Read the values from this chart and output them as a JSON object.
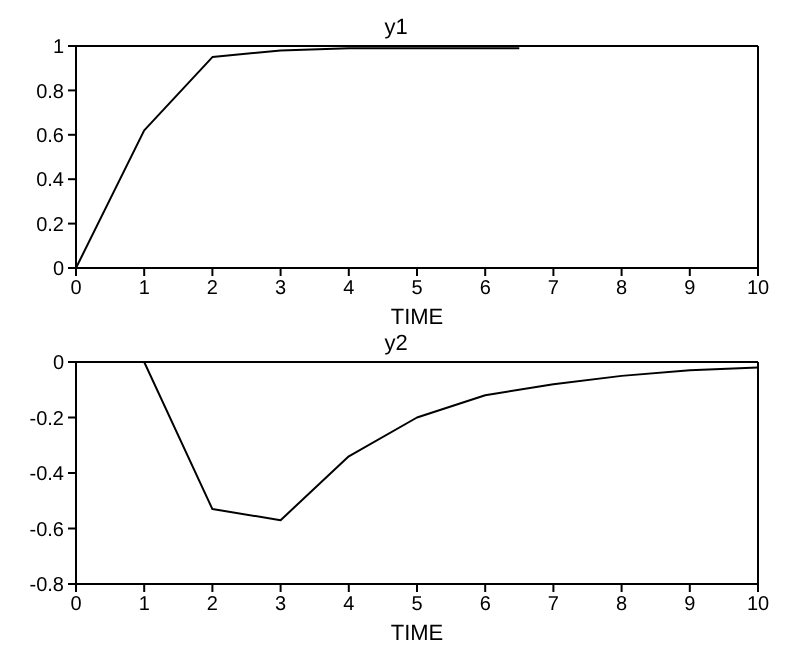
{
  "chart_data": [
    {
      "type": "line",
      "title": "y1",
      "xlabel": "TIME",
      "x": [
        0,
        1,
        2,
        3,
        4,
        5,
        6,
        6.5
      ],
      "values": [
        0,
        0.62,
        0.95,
        0.98,
        0.99,
        0.99,
        0.99,
        0.99
      ],
      "color": "#000000",
      "xlim": [
        0,
        10
      ],
      "xticks": [
        0,
        1,
        2,
        3,
        4,
        5,
        6,
        7,
        8,
        9,
        10
      ],
      "ylim": [
        0,
        1
      ],
      "yticks": [
        0,
        0.2,
        0.4,
        0.6,
        0.8,
        1
      ],
      "grid": false,
      "marker": "none",
      "line_style": "solid"
    },
    {
      "type": "line",
      "title": "y2",
      "xlabel": "TIME",
      "x": [
        0,
        1,
        2,
        3,
        4,
        5,
        6,
        7,
        8,
        9,
        10
      ],
      "values": [
        0,
        0,
        -0.53,
        -0.57,
        -0.34,
        -0.2,
        -0.12,
        -0.08,
        -0.05,
        -0.03,
        -0.02
      ],
      "color": "#000000",
      "xlim": [
        0,
        10
      ],
      "xticks": [
        0,
        1,
        2,
        3,
        4,
        5,
        6,
        7,
        8,
        9,
        10
      ],
      "ylim": [
        -0.8,
        0
      ],
      "yticks": [
        -0.8,
        -0.6,
        -0.4,
        -0.2,
        0
      ],
      "grid": false,
      "marker": "none",
      "line_style": "solid"
    }
  ]
}
